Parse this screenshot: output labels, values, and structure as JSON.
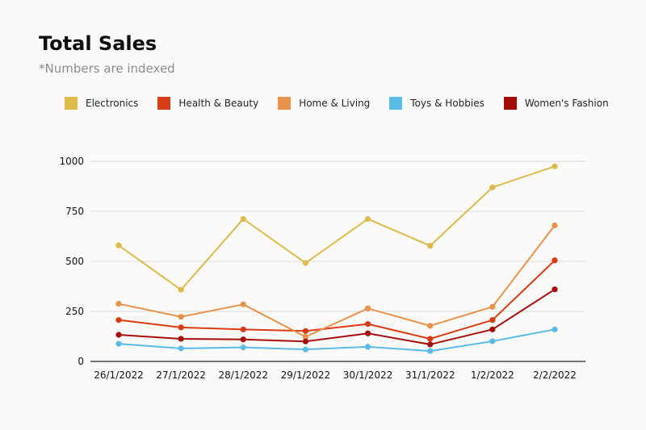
{
  "header": {
    "title": "Total Sales",
    "subtitle": "*Numbers are indexed"
  },
  "chart_data": {
    "type": "line",
    "title": "Total Sales",
    "subtitle": "*Numbers are indexed",
    "xlabel": "",
    "ylabel": "",
    "categories": [
      "26/1/2022",
      "27/1/2022",
      "28/1/2022",
      "29/1/2022",
      "30/1/2022",
      "31/1/2022",
      "1/2/2022",
      "2/2/2022"
    ],
    "ylim": [
      0,
      1000
    ],
    "yticks": [
      0,
      250,
      500,
      750,
      1000
    ],
    "ytick_labels": [
      "0",
      "250",
      "500",
      "750",
      "1000"
    ],
    "grid": true,
    "legend_position": "top",
    "series": [
      {
        "name": "Electronics",
        "color": "#dcbb4c",
        "values": [
          580,
          358,
          712,
          492,
          712,
          578,
          870,
          975
        ]
      },
      {
        "name": "Health & Beauty",
        "color": "#d93b14",
        "values": [
          207,
          170,
          160,
          152,
          187,
          113,
          207,
          505
        ]
      },
      {
        "name": "Home & Living",
        "color": "#e9924b",
        "values": [
          288,
          223,
          285,
          123,
          265,
          178,
          273,
          680
        ]
      },
      {
        "name": "Toys & Hobbies",
        "color": "#5bbbe8",
        "values": [
          88,
          65,
          70,
          60,
          73,
          52,
          101,
          160
        ]
      },
      {
        "name": "Women's Fashion",
        "color": "#a50d0d",
        "values": [
          133,
          113,
          110,
          100,
          140,
          85,
          160,
          360
        ]
      }
    ]
  }
}
